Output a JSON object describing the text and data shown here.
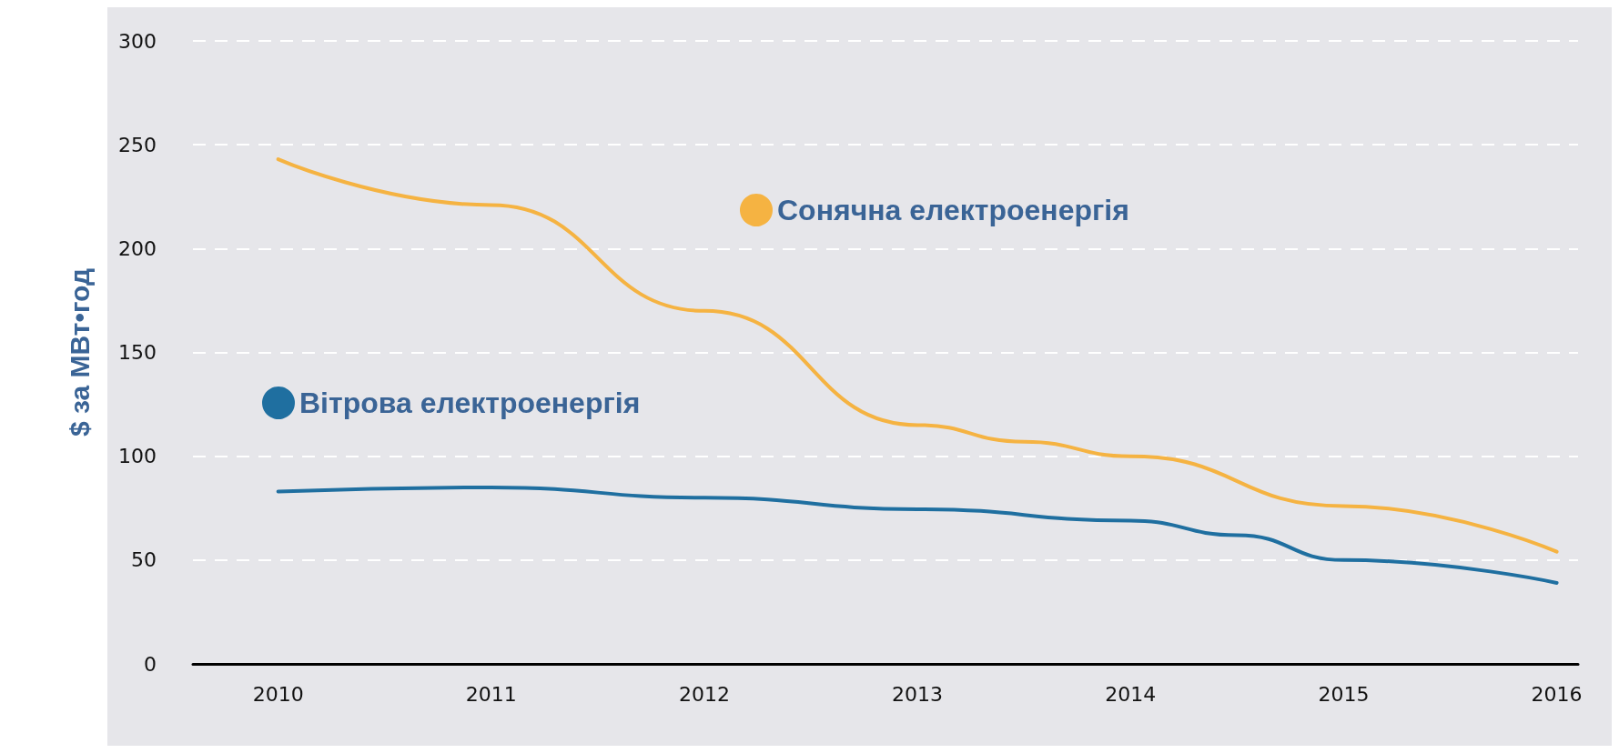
{
  "chart_data": {
    "type": "line",
    "ylabel": "$ за МВт•год",
    "series": [
      {
        "name": "Сонячна електроенергія",
        "color": "#f5b342",
        "x": [
          2010,
          2011,
          2012,
          2013,
          2013.5,
          2014,
          2015,
          2016
        ],
        "values": [
          243,
          221,
          170,
          115,
          107,
          100,
          76,
          54
        ]
      },
      {
        "name": "Вітрова електроенергія",
        "color": "#1f6fa0",
        "x": [
          2010,
          2011,
          2012,
          2013,
          2014,
          2014.5,
          2015,
          2016
        ],
        "values": [
          83,
          85,
          80,
          74.5,
          69,
          62,
          50,
          39
        ]
      }
    ],
    "xlim": [
      2009.6,
      2016.1
    ],
    "xticks": [
      2010,
      2011,
      2012,
      2013,
      2014,
      2015,
      2016
    ],
    "ylim": [
      0,
      300
    ],
    "yticks": [
      0,
      50,
      100,
      150,
      200,
      250,
      300
    ],
    "grid": "y",
    "legend": "top left",
    "marker": "none",
    "line_style": "solid"
  }
}
